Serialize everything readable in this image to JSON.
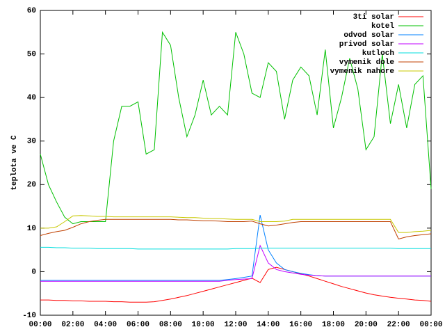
{
  "chart_data": {
    "type": "line",
    "ylabel": "teplota ve C",
    "x": [
      0,
      0.5,
      1,
      1.5,
      2,
      2.5,
      3,
      3.5,
      4,
      4.5,
      5,
      5.5,
      6,
      6.5,
      7,
      7.5,
      8,
      8.5,
      9,
      9.5,
      10,
      10.5,
      11,
      11.5,
      12,
      12.5,
      13,
      13.5,
      14,
      14.5,
      15,
      15.5,
      16,
      16.5,
      17,
      17.5,
      18,
      18.5,
      19,
      19.5,
      20,
      20.5,
      21,
      21.5,
      22,
      22.5,
      23,
      23.5,
      24
    ],
    "xlim": [
      0,
      24
    ],
    "xticks": [
      {
        "value": 0,
        "label": "00:00"
      },
      {
        "value": 2,
        "label": "02:00"
      },
      {
        "value": 4,
        "label": "04:00"
      },
      {
        "value": 6,
        "label": "06:00"
      },
      {
        "value": 8,
        "label": "08:00"
      },
      {
        "value": 10,
        "label": "10:00"
      },
      {
        "value": 12,
        "label": "12:00"
      },
      {
        "value": 14,
        "label": "14:00"
      },
      {
        "value": 16,
        "label": "16:00"
      },
      {
        "value": 18,
        "label": "18:00"
      },
      {
        "value": 20,
        "label": "20:00"
      },
      {
        "value": 22,
        "label": "22:00"
      },
      {
        "value": 24,
        "label": "00:00"
      }
    ],
    "ylim": [
      -10,
      60
    ],
    "yticks": [
      -10,
      0,
      10,
      20,
      30,
      40,
      50,
      60
    ],
    "legend": "top-right",
    "series": [
      {
        "name": "3ti solar",
        "color": "#ff0000",
        "values": [
          -6.5,
          -6.5,
          -6.6,
          -6.6,
          -6.7,
          -6.7,
          -6.8,
          -6.8,
          -6.8,
          -6.9,
          -6.9,
          -7,
          -7,
          -7,
          -6.9,
          -6.6,
          -6.3,
          -5.9,
          -5.5,
          -5,
          -4.5,
          -4,
          -3.5,
          -3,
          -2.5,
          -2,
          -1.5,
          -2.5,
          0.5,
          1,
          0.5,
          0,
          -0.5,
          -1,
          -1.6,
          -2.2,
          -2.8,
          -3.4,
          -3.9,
          -4.4,
          -4.9,
          -5.3,
          -5.6,
          -5.9,
          -6.1,
          -6.3,
          -6.5,
          -6.6,
          -6.8
        ]
      },
      {
        "name": "kotel",
        "color": "#00c000",
        "values": [
          27,
          20,
          16,
          12.5,
          11,
          11.5,
          11.5,
          11.5,
          11.5,
          30,
          38,
          38,
          39,
          27,
          28,
          55,
          52,
          40,
          31,
          36,
          44,
          36,
          38,
          36,
          55,
          50,
          41,
          40,
          48,
          46,
          35,
          44,
          47,
          45,
          36,
          51,
          33,
          40,
          49,
          42,
          28,
          31,
          50,
          34,
          43,
          33,
          43,
          45,
          19
        ]
      },
      {
        "name": "odvod solar",
        "color": "#0080ff",
        "values": [
          -2,
          -2,
          -2,
          -2,
          -2,
          -2,
          -2,
          -2,
          -2,
          -2,
          -2,
          -2,
          -2,
          -2,
          -2,
          -2,
          -2,
          -2,
          -2,
          -2,
          -2,
          -2,
          -2,
          -1.8,
          -1.6,
          -1.3,
          -1,
          13,
          5,
          2,
          0.5,
          0,
          -0.4,
          -0.7,
          -0.9,
          -1,
          -1,
          -1,
          -1,
          -1,
          -1,
          -1,
          -1,
          -1,
          -1,
          -1,
          -1,
          -1,
          -1
        ]
      },
      {
        "name": "privod solar",
        "color": "#c000ff",
        "values": [
          -2.2,
          -2.2,
          -2.2,
          -2.2,
          -2.2,
          -2.2,
          -2.2,
          -2.2,
          -2.2,
          -2.2,
          -2.2,
          -2.2,
          -2.2,
          -2.2,
          -2.2,
          -2.2,
          -2.2,
          -2.2,
          -2.2,
          -2.2,
          -2.2,
          -2.2,
          -2.2,
          -2,
          -1.8,
          -1.7,
          -1.6,
          6,
          2,
          0.5,
          0,
          -0.3,
          -0.6,
          -0.8,
          -0.9,
          -1,
          -1,
          -1,
          -1,
          -1,
          -1,
          -1,
          -1,
          -1,
          -1,
          -1,
          -1,
          -1,
          -1
        ]
      },
      {
        "name": "kutloch",
        "color": "#00dddd",
        "values": [
          5.6,
          5.6,
          5.5,
          5.5,
          5.4,
          5.4,
          5.4,
          5.3,
          5.3,
          5.3,
          5.3,
          5.3,
          5.2,
          5.2,
          5.2,
          5.2,
          5.2,
          5.2,
          5.2,
          5.2,
          5.2,
          5.2,
          5.2,
          5.2,
          5.3,
          5.3,
          5.3,
          5.4,
          5.4,
          5.4,
          5.4,
          5.4,
          5.4,
          5.4,
          5.4,
          5.4,
          5.4,
          5.4,
          5.4,
          5.4,
          5.4,
          5.4,
          5.4,
          5.4,
          5.3,
          5.3,
          5.3,
          5.3,
          5.3
        ]
      },
      {
        "name": "vymenik dole",
        "color": "#c04000",
        "values": [
          8.3,
          8.8,
          9.2,
          9.5,
          10.2,
          11,
          11.5,
          11.8,
          12,
          12,
          12,
          12,
          12,
          12,
          12,
          12,
          12,
          11.9,
          11.9,
          11.8,
          11.7,
          11.7,
          11.6,
          11.5,
          11.5,
          11.5,
          11.6,
          11,
          10.5,
          10.7,
          11,
          11.3,
          11.5,
          11.5,
          11.5,
          11.5,
          11.5,
          11.5,
          11.5,
          11.5,
          11.5,
          11.5,
          11.5,
          11.5,
          7.5,
          8,
          8.3,
          8.5,
          8.7
        ]
      },
      {
        "name": "vymenik nahore",
        "color": "#c8c800",
        "values": [
          10,
          10,
          10.3,
          11.5,
          12.8,
          12.9,
          12.8,
          12.7,
          12.7,
          12.6,
          12.6,
          12.6,
          12.6,
          12.6,
          12.6,
          12.6,
          12.6,
          12.5,
          12.4,
          12.4,
          12.3,
          12.2,
          12.2,
          12.1,
          12,
          12,
          12,
          11.5,
          11.5,
          11.5,
          11.6,
          12,
          12,
          12,
          12,
          12,
          12,
          12,
          12,
          12,
          12,
          12,
          12,
          12,
          9,
          9,
          9.2,
          9.3,
          9.5
        ]
      }
    ]
  }
}
